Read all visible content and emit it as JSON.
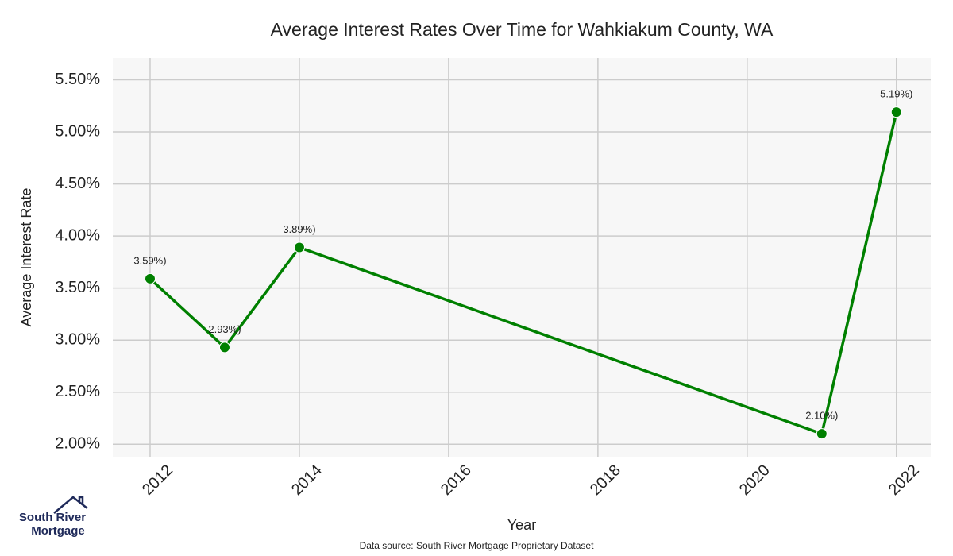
{
  "chart_data": {
    "type": "line",
    "title": "Average Interest Rates Over Time for Wahkiakum County, WA",
    "x_label": "Year",
    "y_label": "Average Interest Rate",
    "x": [
      2012,
      2013,
      2014,
      2021,
      2022
    ],
    "series": [
      {
        "name": "Average Interest Rate",
        "color": "#008000",
        "values": [
          3.59,
          2.93,
          3.89,
          2.1,
          5.19
        ],
        "value_labels": [
          "3.59%)",
          "2.93%)",
          "3.89%)",
          "2.10%)",
          "5.19%)"
        ]
      }
    ],
    "xlim": [
      2011.5,
      2022.46
    ],
    "xticks": [
      2012,
      2014,
      2016,
      2018,
      2020,
      2022
    ],
    "ylim": [
      1.88,
      5.71
    ],
    "yticks": [
      {
        "value": 2.0,
        "label": "2.00%"
      },
      {
        "value": 2.5,
        "label": "2.50%"
      },
      {
        "value": 3.0,
        "label": "3.00%"
      },
      {
        "value": 3.5,
        "label": "3.50%"
      },
      {
        "value": 4.0,
        "label": "4.00%"
      },
      {
        "value": 4.5,
        "label": "4.50%"
      },
      {
        "value": 5.0,
        "label": "5.00%"
      },
      {
        "value": 5.5,
        "label": "5.50%"
      }
    ],
    "grid": true,
    "source": "Data source: South River Mortgage Proprietary Dataset"
  },
  "logo": {
    "line1": "South River",
    "line2": "Mortgage"
  }
}
